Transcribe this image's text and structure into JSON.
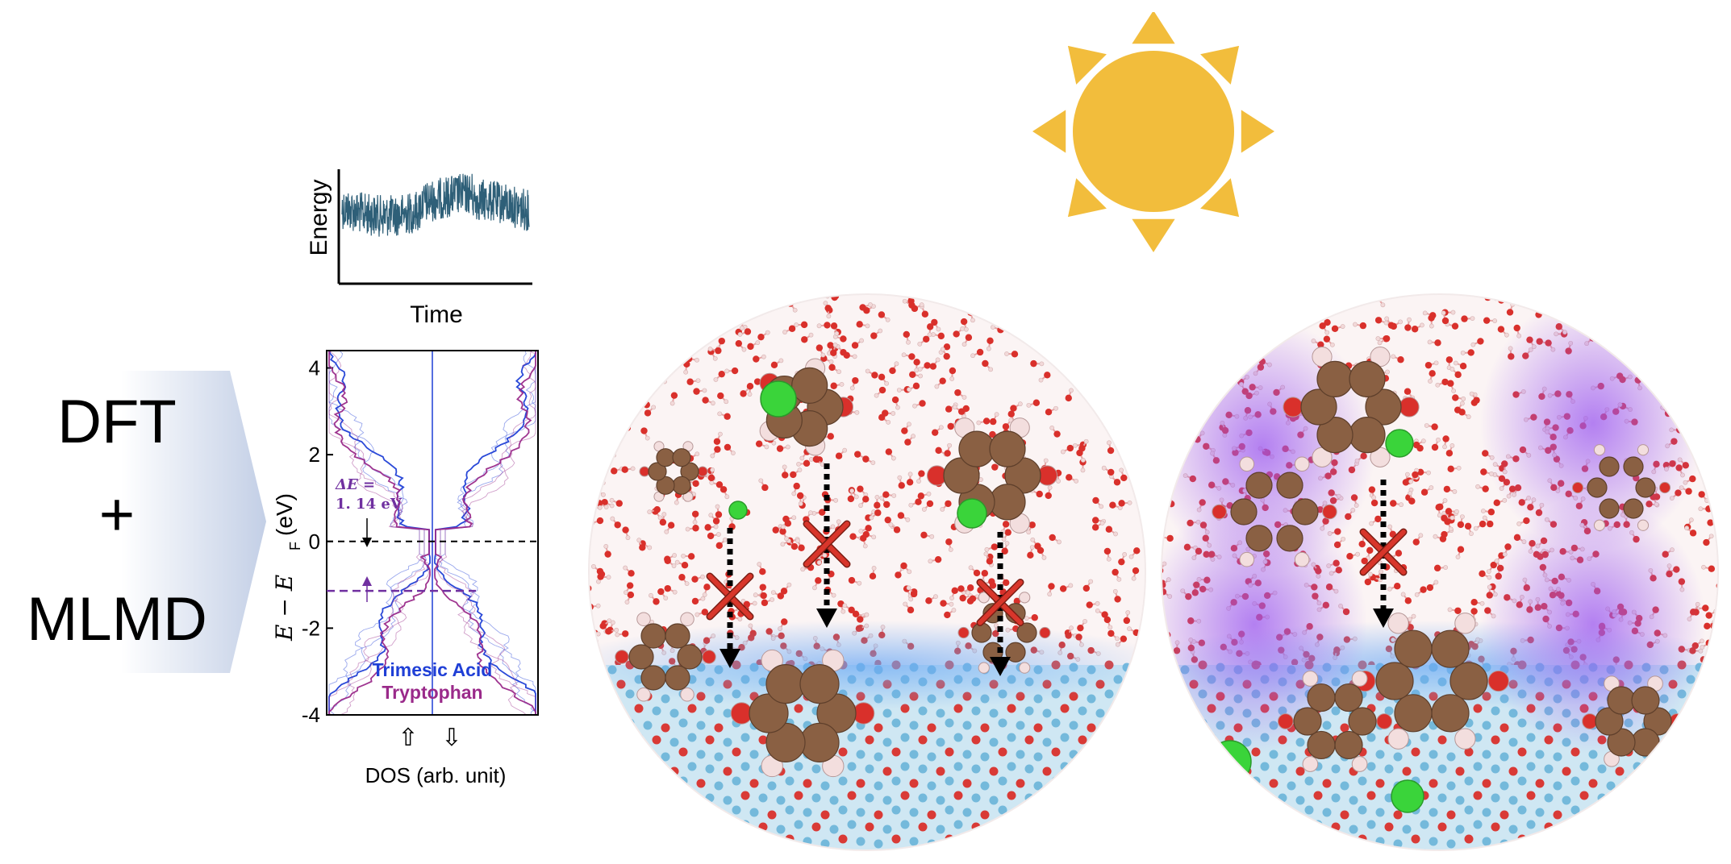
{
  "method": {
    "line1": "DFT",
    "line2": "+",
    "line3": "MLMD"
  },
  "energy_plot": {
    "ylabel": "Energy",
    "xlabel": "Time",
    "trace_color": "#2e5f78"
  },
  "dos_plot": {
    "xlabel": "DOS (arb. unit)",
    "ylabel": "E − E",
    "ylabel_sub": "F",
    "ylabel_unit": "(eV)",
    "delta_label": "ΔE =",
    "delta_value": "1. 14 eV",
    "legend_trimesic": "Trimesic Acid",
    "legend_tryptophan": "Tryptophan",
    "spin_up_arrow": "⇧",
    "spin_down_arrow": "⇩",
    "colors": {
      "trimesic": "#1f3fd6",
      "tryptophan": "#9a2a8a",
      "delta": "#7030a0"
    }
  },
  "chart_data": [
    {
      "type": "line",
      "title": "",
      "xlabel": "Time",
      "ylabel": "Energy",
      "series": [
        {
          "values": []
        }
      ]
    },
    {
      "type": "line",
      "title": "",
      "xlabel": "DOS (arb. unit)",
      "ylabel": "E − E F (eV)",
      "y_ticks": [
        4,
        2,
        0,
        -2,
        -4
      ],
      "ylim": [
        -4,
        4.4
      ],
      "reference_lines": [
        {
          "y": 0,
          "style": "dashed",
          "color": "#000000"
        },
        {
          "y": -1.14,
          "style": "dashed",
          "color": "#7030a0"
        }
      ],
      "annotation": {
        "text": "ΔE = 1. 14 eV",
        "value_eV": 1.14
      },
      "series": [
        {
          "name": "Trimesic Acid",
          "color": "#1f3fd6"
        },
        {
          "name": "Tryptophan",
          "color": "#9a2a8a"
        }
      ]
    }
  ],
  "illustration": {
    "sun_color": "#f2bd3c",
    "blocked_mark_color": "#d8362b",
    "colors": {
      "water_o": "#d9302b",
      "water_h": "#f2d9d9",
      "carbon": "#8a6043",
      "chlorine": "#3ad43a",
      "surface": "#6fb6d9",
      "purple_glow": "#9b59f0"
    }
  }
}
